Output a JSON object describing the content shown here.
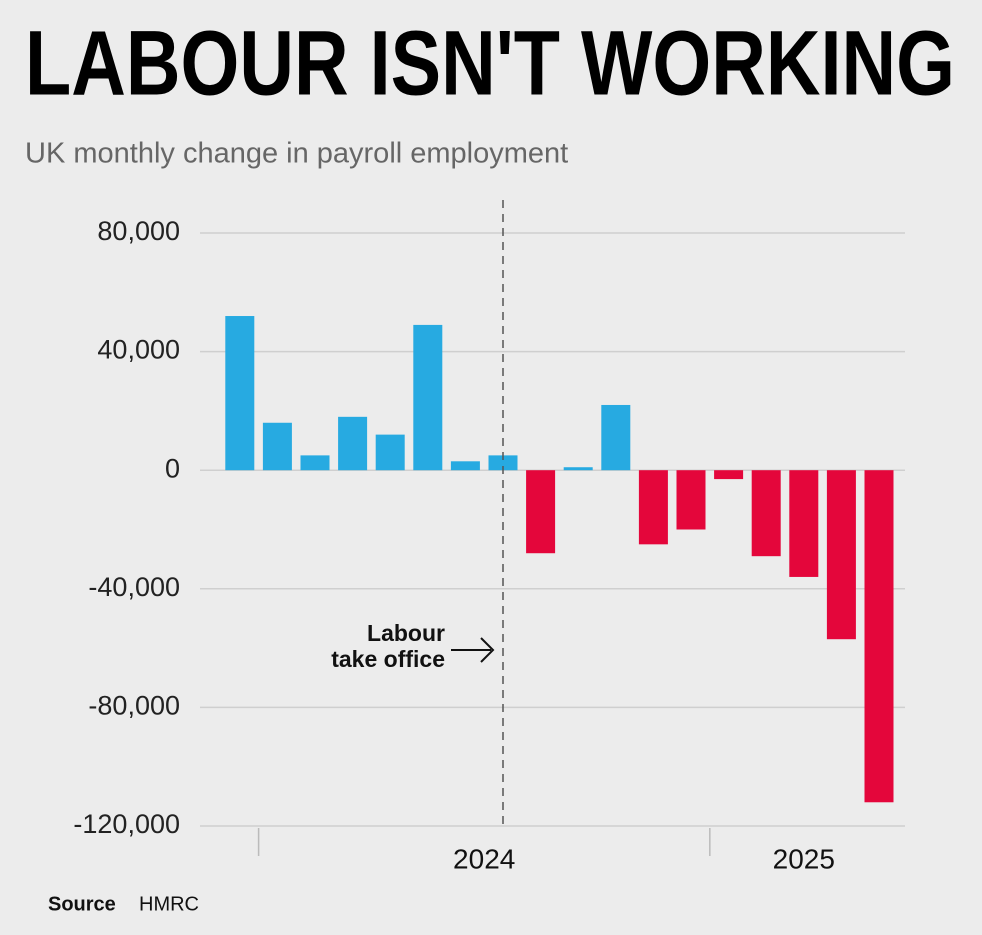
{
  "chart_data": {
    "type": "bar",
    "title": "LABOUR ISN'T WORKING",
    "subtitle": "UK monthly change in payroll employment",
    "source_label": "Source",
    "source": "HMRC",
    "categories": [
      null,
      null,
      null,
      null,
      null,
      null,
      null,
      null,
      null,
      null,
      null,
      null,
      null,
      null,
      null,
      null,
      null,
      null
    ],
    "x_groups": [
      {
        "label": null,
        "count": 1
      },
      {
        "label": "2024",
        "count": 12
      },
      {
        "label": "2025",
        "count": 5
      }
    ],
    "values": [
      52000,
      16000,
      5000,
      18000,
      12000,
      49000,
      3000,
      5000,
      -28000,
      1000,
      22000,
      -25000,
      -20000,
      -3000,
      -29000,
      -36000,
      -57000,
      -112000
    ],
    "positive_color": "#27aae1",
    "negative_color": "#e4063b",
    "ylim": [
      -120000,
      80000
    ],
    "yticks": [
      {
        "value": -120000,
        "label": "-120,000"
      },
      {
        "value": -80000,
        "label": "-80,000"
      },
      {
        "value": -40000,
        "label": "-40,000"
      },
      0,
      {
        "value": 40000,
        "label": "40,000"
      },
      {
        "value": 80000,
        "label": "80,000"
      }
    ],
    "grid": true,
    "annotation": {
      "lines": [
        "Labour",
        "take office"
      ],
      "category_index": 7
    }
  }
}
